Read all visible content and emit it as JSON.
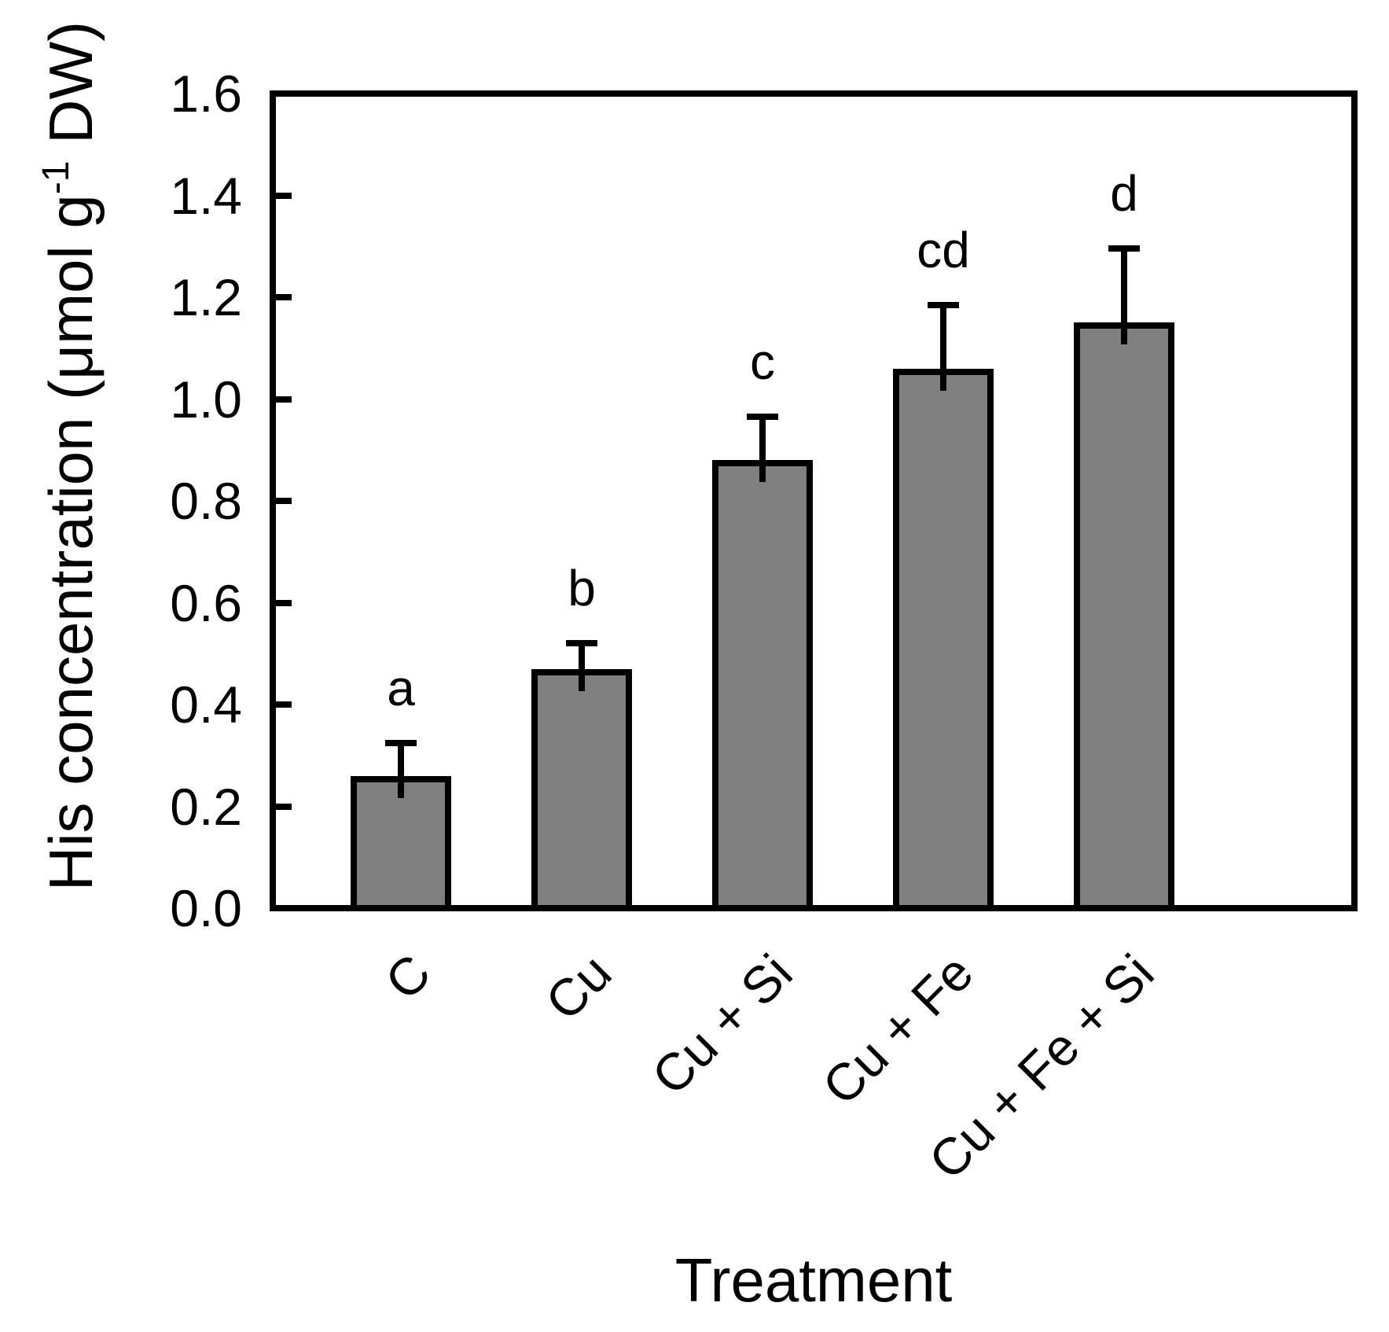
{
  "figure": {
    "bar_fill_color": "#808080",
    "line_color": "#000000",
    "background_color": "#ffffff"
  },
  "chart_data": {
    "type": "bar",
    "title": "",
    "xlabel": "Treatment",
    "ylabel": "His concentration (μmol g-1 DW)",
    "ylabel_prefix": "His concentration (μmol g",
    "ylabel_superscript": "-1",
    "ylabel_suffix": " DW)",
    "categories": [
      "C",
      "Cu",
      "Cu + Si",
      "Cu + Fe",
      "Cu + Fe + Si"
    ],
    "values": [
      0.26,
      0.47,
      0.88,
      1.06,
      1.15
    ],
    "error_bars": [
      0.065,
      0.05,
      0.085,
      0.125,
      0.145
    ],
    "sig_letters": [
      "a",
      "b",
      "c",
      "cd",
      "d"
    ],
    "ylim": [
      0.0,
      1.6
    ],
    "ytick_step": 0.2,
    "ytick_decimals": 1,
    "grid": false,
    "legend": "none",
    "error_bar_direction": "up",
    "x_label_rotation_deg": 45
  }
}
